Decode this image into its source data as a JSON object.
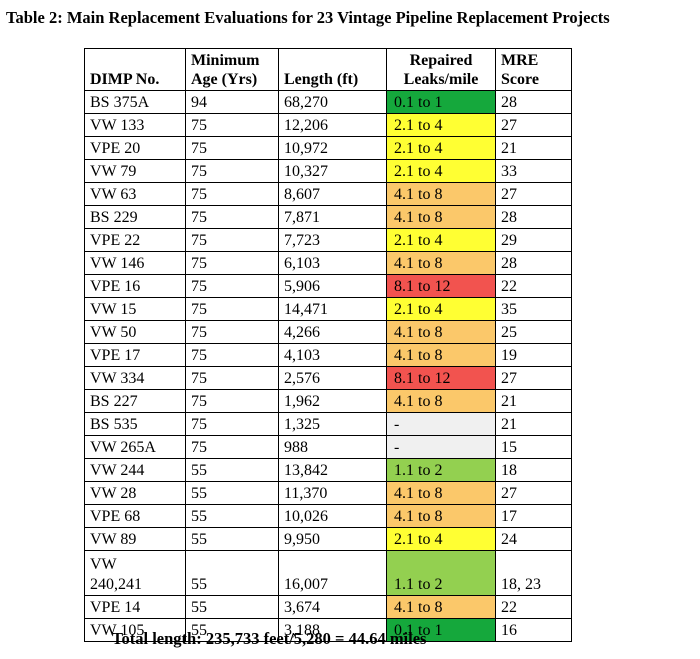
{
  "title": "Table 2: Main Replacement Evaluations for 23 Vintage Pipeline Replacement Projects",
  "colors": {
    "dark_green": "#15a83c",
    "light_green": "#93d050",
    "yellow": "#ffff33",
    "orange": "#fbc86a",
    "red": "#f2534f",
    "grey": "#f0f0f0"
  },
  "headers": {
    "dimp": "DIMP No.",
    "age_line1": "Minimum",
    "age_line2": "Age (Yrs)",
    "length": "Length (ft)",
    "leaks_line1": "Repaired",
    "leaks_line2": "Leaks/mile",
    "mre_line1": "MRE",
    "mre_line2": "Score"
  },
  "rows": [
    {
      "dimp": "BS 375A",
      "age": "94",
      "length": "68,270",
      "leaks": "0.1 to 1",
      "color": "dark_green",
      "mre": "28"
    },
    {
      "dimp": "VW 133",
      "age": "75",
      "length": "12,206",
      "leaks": "2.1 to 4",
      "color": "yellow",
      "mre": "27"
    },
    {
      "dimp": "VPE 20",
      "age": "75",
      "length": "10,972",
      "leaks": "2.1 to 4",
      "color": "yellow",
      "mre": "21"
    },
    {
      "dimp": "VW 79",
      "age": "75",
      "length": "10,327",
      "leaks": "2.1 to 4",
      "color": "yellow",
      "mre": "33"
    },
    {
      "dimp": "VW 63",
      "age": "75",
      "length": "8,607",
      "leaks": "4.1 to 8",
      "color": "orange",
      "mre": "27"
    },
    {
      "dimp": "BS 229",
      "age": "75",
      "length": "7,871",
      "leaks": "4.1 to 8",
      "color": "orange",
      "mre": "28"
    },
    {
      "dimp": "VPE 22",
      "age": "75",
      "length": "7,723",
      "leaks": "2.1 to 4",
      "color": "yellow",
      "mre": "29"
    },
    {
      "dimp": "VW 146",
      "age": "75",
      "length": "6,103",
      "leaks": "4.1 to 8",
      "color": "orange",
      "mre": "28"
    },
    {
      "dimp": "VPE 16",
      "age": "75",
      "length": "5,906",
      "leaks": "8.1 to 12",
      "color": "red",
      "mre": "22"
    },
    {
      "dimp": "VW 15",
      "age": "75",
      "length": "14,471",
      "leaks": "2.1 to 4",
      "color": "yellow",
      "mre": "35"
    },
    {
      "dimp": "VW 50",
      "age": "75",
      "length": "4,266",
      "leaks": "4.1 to 8",
      "color": "orange",
      "mre": "25"
    },
    {
      "dimp": "VPE 17",
      "age": "75",
      "length": "4,103",
      "leaks": "4.1 to 8",
      "color": "orange",
      "mre": "19"
    },
    {
      "dimp": "VW 334",
      "age": "75",
      "length": "2,576",
      "leaks": "8.1 to 12",
      "color": "red",
      "mre": "27"
    },
    {
      "dimp": "BS 227",
      "age": "75",
      "length": "1,962",
      "leaks": "4.1 to 8",
      "color": "orange",
      "mre": "21"
    },
    {
      "dimp": "BS 535",
      "age": "75",
      "length": "1,325",
      "leaks": "-",
      "color": "grey",
      "mre": "21"
    },
    {
      "dimp": "VW 265A",
      "age": "75",
      "length": "988",
      "leaks": "-",
      "color": "grey",
      "mre": "15"
    },
    {
      "dimp": "VW 244",
      "age": "55",
      "length": "13,842",
      "leaks": "1.1 to 2",
      "color": "light_green",
      "mre": "18"
    },
    {
      "dimp": "VW 28",
      "age": "55",
      "length": "11,370",
      "leaks": "4.1 to 8",
      "color": "orange",
      "mre": "27"
    },
    {
      "dimp": "VPE 68",
      "age": "55",
      "length": "10,026",
      "leaks": "4.1 to 8",
      "color": "orange",
      "mre": "17"
    },
    {
      "dimp": "VW 89",
      "age": "55",
      "length": "9,950",
      "leaks": "2.1 to 4",
      "color": "yellow",
      "mre": "24"
    },
    {
      "dimp": "VW\n240,241",
      "age": "55",
      "length": "16,007",
      "leaks": "1.1 to 2",
      "color": "light_green",
      "mre": "18, 23"
    },
    {
      "dimp": "VPE 14",
      "age": "55",
      "length": "3,674",
      "leaks": "4.1 to 8",
      "color": "orange",
      "mre": "22"
    },
    {
      "dimp": "VW 105",
      "age": "55",
      "length": "3,188",
      "leaks": "0.1 to 1",
      "color": "dark_green",
      "mre": "16"
    }
  ],
  "total": "Total length: 235,733 feet/5,280 = 44.64 miles"
}
